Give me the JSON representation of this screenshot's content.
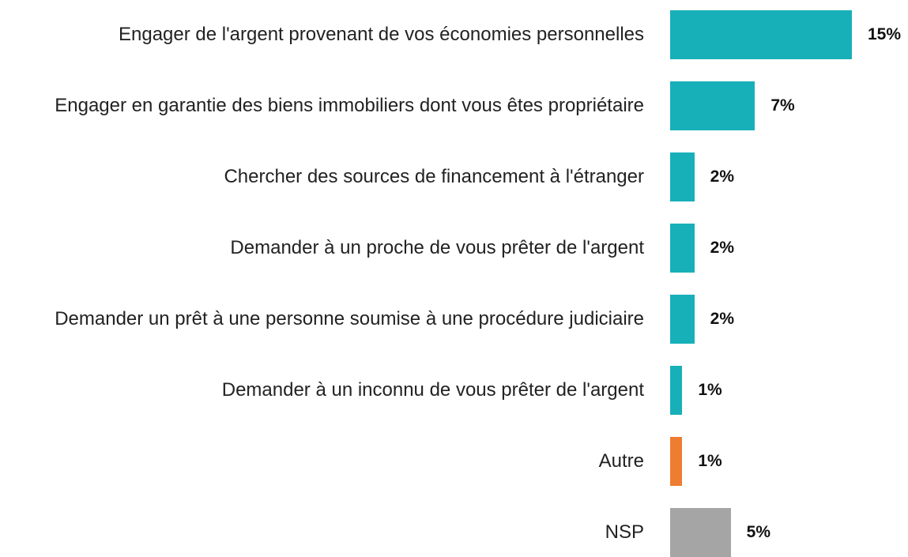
{
  "chart_data": {
    "type": "bar",
    "orientation": "horizontal",
    "categories": [
      "Engager de l'argent provenant de vos économies personnelles",
      "Engager en garantie des biens immobiliers dont vous êtes propriétaire",
      "Chercher des sources de financement à l'étranger",
      "Demander à un proche de vous prêter de l'argent",
      "Demander un prêt à une personne soumise à une procédure judiciaire",
      "Demander à un inconnu de vous prêter de l'argent",
      "Autre",
      "NSP"
    ],
    "values": [
      15,
      7,
      2,
      2,
      2,
      1,
      1,
      5
    ],
    "value_labels": [
      "15%",
      "7%",
      "2%",
      "2%",
      "2%",
      "1%",
      "1%",
      "5%"
    ],
    "colors": [
      "#17b0b9",
      "#17b0b9",
      "#17b0b9",
      "#17b0b9",
      "#17b0b9",
      "#17b0b9",
      "#ed7d31",
      "#a5a5a5"
    ]
  }
}
